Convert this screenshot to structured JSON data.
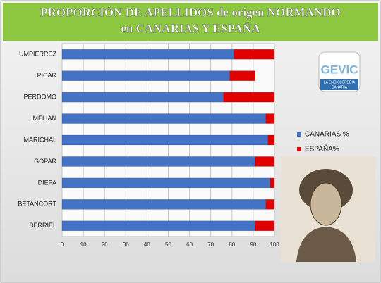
{
  "chart_data": {
    "type": "bar",
    "orientation": "horizontal",
    "stacked": true,
    "title": [
      "PROPORCIÓN DE APELLIDOS  de origen NORMANDO",
      "en CANARIAS Y ESPAÑA"
    ],
    "categories": [
      "UMPIERREZ",
      "PICAR",
      "PERDOMO",
      "MELIÁN",
      "MARICHAL",
      "GOPAR",
      "DIEPA",
      "BETANCORT",
      "BERRIEL"
    ],
    "series": [
      {
        "name": "CANARIAS %",
        "color": "#4472c4",
        "values": [
          81,
          79,
          76,
          96,
          97,
          91,
          98,
          96,
          91
        ]
      },
      {
        "name": "ESPAÑA%",
        "color": "#e00000",
        "values": [
          19,
          12,
          24,
          4,
          3,
          9,
          2,
          4,
          9
        ]
      }
    ],
    "xlim": [
      0,
      100
    ],
    "xticks": [
      0,
      10,
      20,
      30,
      40,
      50,
      60,
      70,
      80,
      90,
      100
    ],
    "grid": true,
    "legend": "right",
    "logo": {
      "text": "GEVIC",
      "caption": [
        "LA ENCICLOPEDIA",
        "CANARIA"
      ]
    }
  }
}
